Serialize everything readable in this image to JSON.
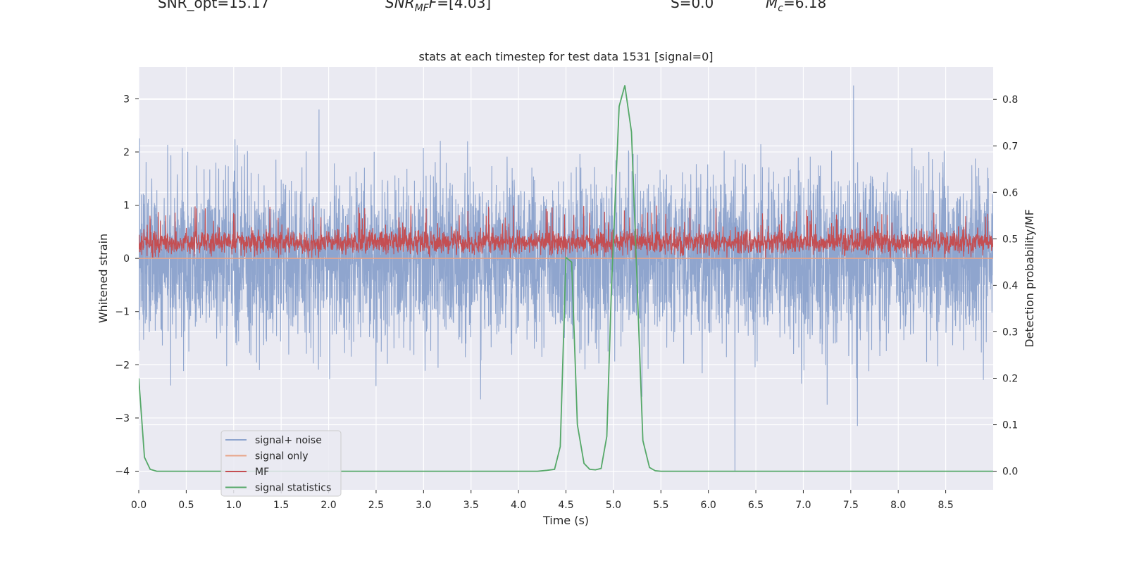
{
  "header": {
    "snr_opt": "SNR_opt=15.17",
    "snr_mf_base": "SNR",
    "snr_mf_sub": "MF",
    "snr_mf_value": "=[4.03]",
    "s_value": "S=0.0",
    "mc_base": "M",
    "mc_sub": "c",
    "mc_value": "=6.18"
  },
  "colors": {
    "axes_bg": "#EAEAF2",
    "grid": "#FFFFFF",
    "signal_noise": "#8FA5CE",
    "signal_only": "#E8A488",
    "mf": "#C44E52",
    "signal_statistics": "#55A868",
    "text": "#262626"
  },
  "chart_data": {
    "type": "line",
    "title": "stats at each timestep for test data 1531 [signal=0]",
    "xlabel": "Time (s)",
    "ylabel": "Whitened strain",
    "ylabel_right": "Detection probability/MF",
    "xlim": [
      0,
      9
    ],
    "ylim": [
      -4.35,
      3.6
    ],
    "ylim_right": [
      -0.04,
      0.87
    ],
    "x_ticks": [
      0.0,
      0.5,
      1.0,
      1.5,
      2.0,
      2.5,
      3.0,
      3.5,
      4.0,
      4.5,
      5.0,
      5.5,
      6.0,
      6.5,
      7.0,
      7.5,
      8.0,
      8.5
    ],
    "x_tick_labels": [
      "0.0",
      "0.5",
      "1.0",
      "1.5",
      "2.0",
      "2.5",
      "3.0",
      "3.5",
      "4.0",
      "4.5",
      "5.0",
      "5.5",
      "6.0",
      "6.5",
      "7.0",
      "7.5",
      "8.0",
      "8.5"
    ],
    "y_ticks": [
      3,
      2,
      1,
      0,
      -1,
      -2,
      -3,
      -4
    ],
    "y_tick_labels": [
      "3",
      "2",
      "1",
      "0",
      "−1",
      "−2",
      "−3",
      "−4"
    ],
    "y_ticks_right": [
      0.8,
      0.7,
      0.6,
      0.5,
      0.4,
      0.3,
      0.2,
      0.1,
      0.0
    ],
    "y_tick_labels_right": [
      "0.8",
      "0.7",
      "0.6",
      "0.5",
      "0.4",
      "0.3",
      "0.2",
      "0.1",
      "0.0"
    ],
    "legend": {
      "placement": "lower-left",
      "entries": [
        "signal+ noise",
        "signal only",
        "MF",
        "signal statistics"
      ]
    },
    "series": [
      {
        "name": "signal+ noise",
        "axis": "left",
        "render": "dense-noise",
        "typical_range": [
          -1.6,
          1.6
        ],
        "extreme_range": [
          -4.0,
          3.25
        ],
        "spikes": [
          {
            "x": 1.9,
            "y": 2.8
          },
          {
            "x": 1.27,
            "y": -2.1
          },
          {
            "x": 2.5,
            "y": -2.4
          },
          {
            "x": 3.6,
            "y": -2.65
          },
          {
            "x": 5.3,
            "y": -2.6
          },
          {
            "x": 6.28,
            "y": -4.0
          },
          {
            "x": 7.53,
            "y": 3.25
          },
          {
            "x": 7.57,
            "y": -3.15
          },
          {
            "x": 7.25,
            "y": -2.75
          }
        ]
      },
      {
        "name": "signal only",
        "axis": "left",
        "x": [
          0,
          9
        ],
        "y": [
          0,
          0
        ]
      },
      {
        "name": "MF",
        "axis": "left",
        "render": "dense-noise",
        "baseline": 0.0,
        "typical_top": 0.5,
        "max_top": 1.0
      },
      {
        "name": "signal statistics",
        "axis": "right",
        "x": [
          0.0,
          0.06,
          0.12,
          0.19,
          0.25,
          0.5,
          1.0,
          2.0,
          3.0,
          4.0,
          4.2,
          4.3,
          4.38,
          4.44,
          4.5,
          4.56,
          4.62,
          4.69,
          4.75,
          4.81,
          4.87,
          4.93,
          4.98,
          5.06,
          5.12,
          5.19,
          5.25,
          5.31,
          5.38,
          5.44,
          5.5,
          6.0,
          7.0,
          8.0,
          9.0
        ],
        "y": [
          0.2,
          0.03,
          0.004,
          0.0,
          0.0,
          0.0,
          0.0,
          0.0,
          0.0,
          0.0,
          0.0,
          0.002,
          0.004,
          0.053,
          0.46,
          0.45,
          0.1,
          0.017,
          0.004,
          0.003,
          0.006,
          0.075,
          0.4,
          0.785,
          0.83,
          0.73,
          0.4,
          0.066,
          0.008,
          0.001,
          0.0,
          0.0,
          0.0,
          0.0,
          0.0
        ]
      }
    ]
  }
}
